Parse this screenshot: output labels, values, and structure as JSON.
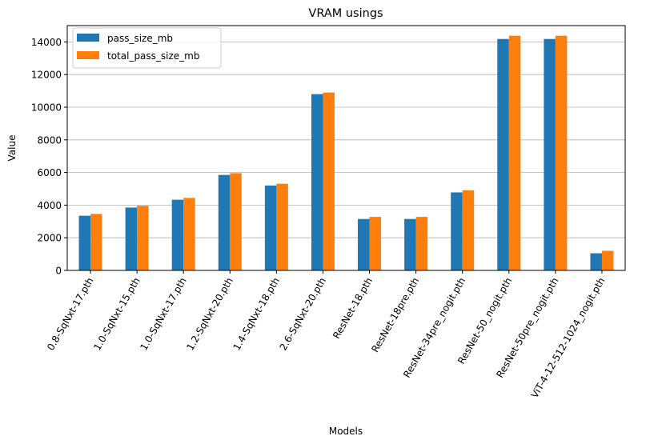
{
  "chart_data": {
    "type": "bar",
    "title": "VRAM usings",
    "xlabel": "Models",
    "ylabel": "Value",
    "ylim": [
      0,
      15000
    ],
    "yticks": [
      0,
      2000,
      4000,
      6000,
      8000,
      10000,
      12000,
      14000
    ],
    "grid": "y-major",
    "legend_position": "top-left",
    "categories": [
      "0.8-SqNxt-17.pth",
      "1.0-SqNxt-15.pth",
      "1.0-SqNxt-17.pth",
      "1.2-SqNxt-20.pth",
      "1.4-SqNxt-18.pth",
      "2.6-SqNxt-20.pth",
      "ResNet-18.pth",
      "ResNet-18pre.pth",
      "ResNet-34pre_nogit.pth",
      "ResNet-50_nogit.pth",
      "ResNet-50pre_nogit.pth",
      "ViT-4-12-512-1024_nogit.pth"
    ],
    "series": [
      {
        "name": "pass_size_mb",
        "color": "#1f77b4",
        "values": [
          3350,
          3850,
          4330,
          5850,
          5200,
          10800,
          3150,
          3150,
          4780,
          14180,
          14180,
          1050
        ]
      },
      {
        "name": "total_pass_size_mb",
        "color": "#ff7f0e",
        "values": [
          3460,
          3960,
          4440,
          5960,
          5310,
          10900,
          3280,
          3280,
          4910,
          14380,
          14380,
          1200
        ]
      }
    ]
  }
}
